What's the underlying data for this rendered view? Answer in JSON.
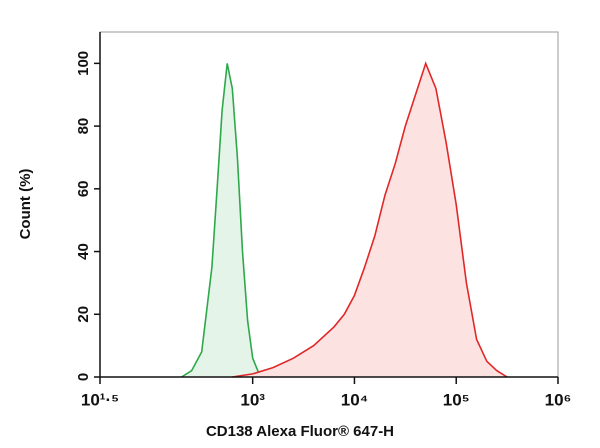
{
  "chart_data": {
    "type": "histogram-overlay",
    "xlabel": "CD138 Alexa Fluor® 647-H",
    "ylabel": "Count (%)",
    "xscale": "log",
    "xlim": [
      31.62,
      1000000
    ],
    "xticks": [
      {
        "value": 31.62,
        "label": "10¹·⁵"
      },
      {
        "value": 1000,
        "label": "10³"
      },
      {
        "value": 10000,
        "label": "10⁴"
      },
      {
        "value": 100000,
        "label": "10⁵"
      },
      {
        "value": 1000000,
        "label": "10⁶"
      }
    ],
    "ylim": [
      0,
      110
    ],
    "yticks": [
      0,
      20,
      40,
      60,
      80,
      100
    ],
    "series": [
      {
        "color": "#2ea84a",
        "fill": "#e4f4e8",
        "x": [
          200,
          251,
          316,
          398,
          447,
          501,
          562,
          631,
          708,
          794,
          891,
          1000,
          1122,
          1259
        ],
        "values": [
          0,
          2,
          8,
          35,
          60,
          85,
          100,
          92,
          70,
          40,
          18,
          6,
          2,
          0
        ]
      },
      {
        "color": "#e02828",
        "fill": "#fde2e2",
        "x": [
          631,
          1000,
          1585,
          2512,
          3981,
          6310,
          7943,
          10000,
          12589,
          15849,
          19953,
          25119,
          31623,
          39811,
          50119,
          63096,
          79433,
          100000,
          125893,
          158489,
          199526,
          251189,
          316228
        ],
        "values": [
          0,
          1,
          3,
          6,
          10,
          16,
          20,
          26,
          35,
          45,
          58,
          68,
          80,
          90,
          100,
          92,
          75,
          55,
          30,
          12,
          5,
          2,
          0
        ]
      }
    ]
  }
}
